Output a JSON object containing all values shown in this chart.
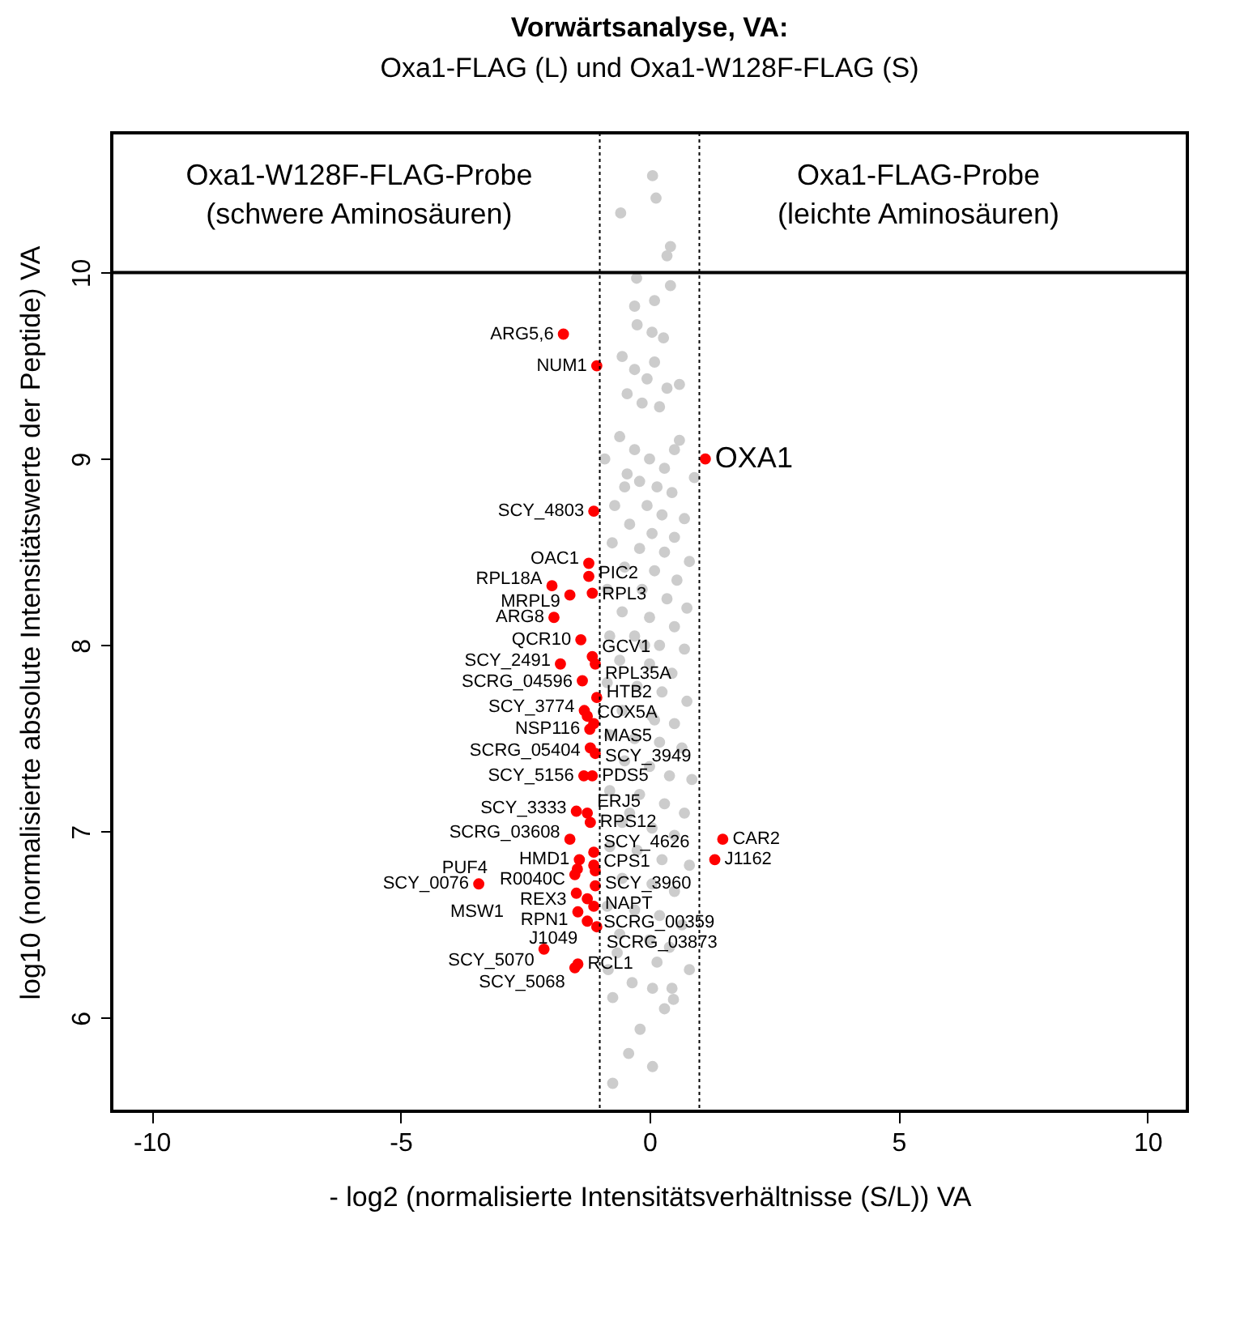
{
  "chart_data": {
    "type": "scatter",
    "title": "Vorwärtsanalyse, VA:",
    "subtitle": "Oxa1-FLAG (L) und Oxa1-W128F-FLAG (S)",
    "xlabel": "- log2 (normalisierte Intensitätsverhältnisse (S/L)) VA",
    "ylabel": "log10 (normalisierte absolute Intensitätswerte der Peptide) VA",
    "xlim": [
      -10.8,
      10.8
    ],
    "xticks": [
      -10,
      -5,
      0,
      5,
      10
    ],
    "ylim": [
      5.5,
      10.75
    ],
    "yticks": [
      6,
      7,
      8,
      9,
      10
    ],
    "grid": false,
    "marker": "circle",
    "series": [
      {
        "color": "#cccccc",
        "x": [
          0.06,
          0.13,
          -0.58,
          0.42,
          0.35,
          0.42,
          -0.26,
          -0.3,
          0.1,
          -0.25,
          0.05,
          0.28,
          -0.55,
          -0.3,
          0.1,
          -0.05,
          0.35,
          -0.45,
          -0.15,
          0.2,
          0.6,
          0.5,
          -0.6,
          -0.3,
          0.0,
          0.3,
          -0.45,
          -0.2,
          0.15,
          0.45,
          -0.7,
          -0.05,
          0.25,
          0.7,
          -0.4,
          0.05,
          0.5,
          -0.75,
          -0.2,
          0.3,
          0.8,
          -0.5,
          0.1,
          0.55,
          -0.85,
          -0.15,
          0.35,
          0.75,
          -0.55,
          0.0,
          0.5,
          -0.8,
          -0.3,
          0.2,
          0.7,
          -0.6,
          0.0,
          0.45,
          -0.85,
          -0.25,
          0.25,
          0.75,
          -0.55,
          0.05,
          0.5,
          -0.8,
          -0.3,
          0.2,
          0.65,
          -0.5,
          0.0,
          0.4,
          0.85,
          -0.8,
          -0.2,
          0.3,
          0.7,
          -0.55,
          0.05,
          0.5,
          -0.8,
          -0.25,
          0.25,
          0.8,
          -0.55,
          0.05,
          0.5,
          -0.85,
          -0.3,
          0.2,
          0.65,
          -0.6,
          0.0,
          0.4,
          -0.83,
          -0.35,
          -0.74,
          0.45,
          0.48,
          0.8,
          0.06,
          -0.19,
          -0.42,
          0.06,
          -0.74,
          -0.1,
          0.1,
          -0.4,
          0.15,
          0.9,
          -0.9,
          0.6,
          -0.65,
          0.3,
          -0.5
        ],
        "values": [
          10.52,
          10.4,
          10.32,
          10.14,
          10.09,
          9.93,
          9.97,
          9.82,
          9.85,
          9.72,
          9.68,
          9.65,
          9.55,
          9.48,
          9.52,
          9.43,
          9.38,
          9.35,
          9.3,
          9.28,
          9.1,
          9.05,
          9.12,
          9.05,
          9.0,
          8.95,
          8.92,
          8.88,
          8.85,
          8.82,
          8.75,
          8.75,
          8.7,
          8.68,
          8.65,
          8.6,
          8.58,
          8.55,
          8.52,
          8.5,
          8.45,
          8.42,
          8.4,
          8.35,
          8.3,
          8.3,
          8.25,
          8.2,
          8.18,
          8.15,
          8.1,
          8.05,
          8.05,
          8.0,
          7.98,
          7.92,
          7.9,
          7.85,
          7.8,
          7.78,
          7.75,
          7.7,
          7.65,
          7.62,
          7.58,
          7.52,
          7.5,
          7.48,
          7.45,
          7.38,
          7.35,
          7.3,
          7.28,
          7.22,
          7.2,
          7.15,
          7.1,
          7.05,
          7.02,
          6.98,
          6.92,
          6.9,
          6.85,
          6.82,
          6.75,
          6.72,
          6.68,
          6.6,
          6.58,
          6.55,
          6.5,
          6.45,
          6.42,
          6.38,
          6.26,
          6.19,
          6.11,
          6.16,
          6.1,
          6.26,
          6.16,
          5.94,
          5.81,
          5.74,
          5.65,
          8.0,
          7.6,
          7.1,
          6.3,
          8.9,
          9.0,
          9.4,
          6.35,
          6.05,
          8.85
        ]
      },
      {
        "color": "#ff0000",
        "x": [
          -1.73,
          -1.06,
          1.12,
          -1.12,
          -1.22,
          -1.22,
          -1.96,
          -1.6,
          -1.15,
          -1.92,
          -1.38,
          -1.15,
          -1.79,
          -1.09,
          -1.35,
          -1.06,
          -1.31,
          -1.25,
          -1.12,
          -1.2,
          -1.19,
          -1.09,
          -1.32,
          -1.15,
          -1.47,
          -1.25,
          -1.19,
          -1.6,
          -1.12,
          1.47,
          1.31,
          -1.12,
          -1.41,
          -1.09,
          -1.45,
          -1.5,
          -3.43,
          -1.09,
          -1.47,
          -1.25,
          -1.12,
          -1.44,
          -1.25,
          -1.06,
          -2.12,
          -1.44,
          -1.5
        ],
        "values": [
          9.67,
          9.5,
          9.0,
          8.72,
          8.44,
          8.37,
          8.32,
          8.27,
          8.28,
          8.15,
          8.03,
          7.94,
          7.9,
          7.9,
          7.81,
          7.72,
          7.65,
          7.62,
          7.58,
          7.55,
          7.45,
          7.42,
          7.3,
          7.3,
          7.11,
          7.1,
          7.05,
          6.96,
          6.89,
          6.96,
          6.85,
          6.82,
          6.85,
          6.79,
          6.8,
          6.77,
          6.72,
          6.71,
          6.67,
          6.64,
          6.6,
          6.57,
          6.52,
          6.49,
          6.37,
          6.29,
          6.27
        ]
      }
    ],
    "ref_lines": [
      {
        "axis": "x",
        "value": -1,
        "line_style": "dotted"
      },
      {
        "axis": "x",
        "value": 1,
        "line_style": "dotted"
      },
      {
        "axis": "y",
        "value": 10,
        "line_style": "solid"
      }
    ],
    "annotations": [
      "Oxa1-W128F-FLAG-Probe\n(schwere Aminosäuren)",
      "Oxa1-FLAG-Probe\n(leichte Aminosäuren)",
      {
        "text": "ARG5,6",
        "x": -1.73,
        "y": 9.67
      },
      {
        "text": "NUM1",
        "x": -1.06,
        "y": 9.5
      },
      {
        "text": "OXA1",
        "x": 1.12,
        "y": 9.0
      },
      {
        "text": "SCY_4803",
        "x": -1.12,
        "y": 8.72
      },
      {
        "text": "OAC1",
        "x": -1.22,
        "y": 8.44
      },
      {
        "text": "PIC2",
        "x": -1.22,
        "y": 8.37
      },
      {
        "text": "RPL18A",
        "x": -1.96,
        "y": 8.32
      },
      {
        "text": "MRPL9",
        "x": -1.6,
        "y": 8.27
      },
      {
        "text": "RPL3",
        "x": -1.15,
        "y": 8.28
      },
      {
        "text": "ARG8",
        "x": -1.92,
        "y": 8.15
      },
      {
        "text": "QCR10",
        "x": -1.38,
        "y": 8.03
      },
      {
        "text": "GCV1",
        "x": -1.15,
        "y": 7.94
      },
      {
        "text": "SCY_2491",
        "x": -1.79,
        "y": 7.9
      },
      {
        "text": "RPL35A",
        "x": -1.09,
        "y": 7.9
      },
      {
        "text": "SCRG_04596",
        "x": -1.35,
        "y": 7.81
      },
      {
        "text": "HTB2",
        "x": -1.06,
        "y": 7.72
      },
      {
        "text": "SCY_3774",
        "x": -1.31,
        "y": 7.65
      },
      {
        "text": "COX5A",
        "x": -1.25,
        "y": 7.62
      },
      {
        "text": "MAS5",
        "x": -1.12,
        "y": 7.58
      },
      {
        "text": "NSP116",
        "x": -1.2,
        "y": 7.55
      },
      {
        "text": "SCRG_05404",
        "x": -1.19,
        "y": 7.45
      },
      {
        "text": "SCY_3949",
        "x": -1.09,
        "y": 7.42
      },
      {
        "text": "SCY_5156",
        "x": -1.32,
        "y": 7.3
      },
      {
        "text": "PDS5",
        "x": -1.15,
        "y": 7.3
      },
      {
        "text": "SCY_3333",
        "x": -1.47,
        "y": 7.11
      },
      {
        "text": "ERJ5",
        "x": -1.25,
        "y": 7.1
      },
      {
        "text": "RPS12",
        "x": -1.19,
        "y": 7.05
      },
      {
        "text": "SCRG_03608",
        "x": -1.6,
        "y": 6.96
      },
      {
        "text": "SCY_4626",
        "x": -1.12,
        "y": 6.89
      },
      {
        "text": "CAR2",
        "x": 1.47,
        "y": 6.96
      },
      {
        "text": "J1162",
        "x": 1.31,
        "y": 6.85
      },
      {
        "text": "CPS1",
        "x": -1.12,
        "y": 6.82
      },
      {
        "text": "HMD1",
        "x": -1.41,
        "y": 6.85
      },
      {
        "text": "SCY_3960",
        "x": -1.09,
        "y": 6.79
      },
      "PUF4",
      {
        "text": "R0040C",
        "x": -1.5,
        "y": 6.77
      },
      {
        "text": "SCY_0076",
        "x": -3.43,
        "y": 6.72
      },
      {
        "text": "NAPT",
        "x": -1.09,
        "y": 6.71
      },
      {
        "text": "REX3",
        "x": -1.47,
        "y": 6.67
      },
      "MSW1",
      {
        "text": "SCRG_00359",
        "x": -1.12,
        "y": 6.6
      },
      {
        "text": "RPN1",
        "x": -1.44,
        "y": 6.57
      },
      {
        "text": "J1049",
        "x": -1.25,
        "y": 6.52
      },
      {
        "text": "SCRG_03873",
        "x": -1.06,
        "y": 6.49
      },
      {
        "text": "SCY_5070",
        "x": -2.12,
        "y": 6.37
      },
      {
        "text": "RCL1",
        "x": -1.44,
        "y": 6.29
      },
      {
        "text": "SCY_5068",
        "x": -1.5,
        "y": 6.27
      }
    ]
  }
}
